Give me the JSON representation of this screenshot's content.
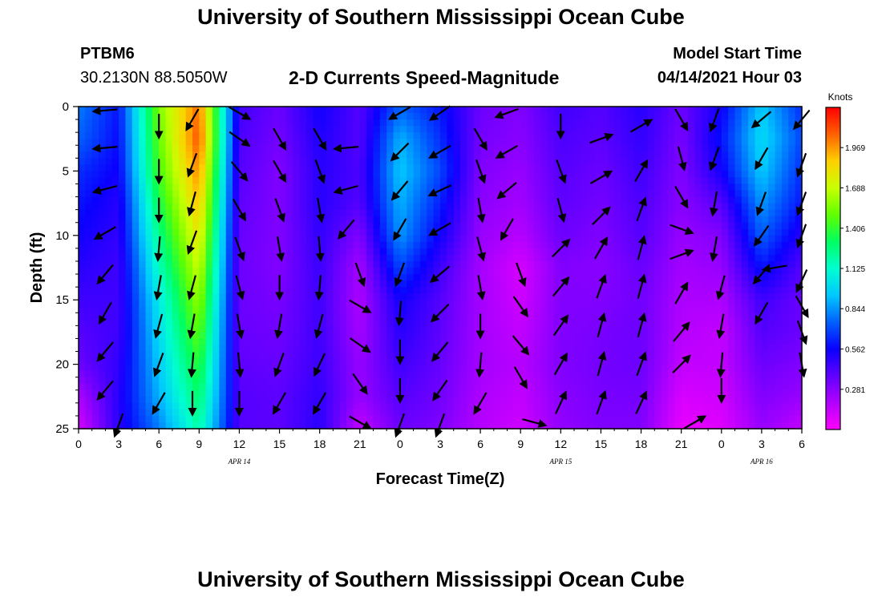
{
  "header": {
    "title": "University of Southern Mississippi Ocean Cube",
    "station_id": "PTBM6",
    "station_coords": "30.2130N  88.5050W",
    "chart_title": "2-D Currents Speed-Magnitude",
    "model_start_label": "Model Start Time",
    "model_start_value": "04/14/2021 Hour 03"
  },
  "footer": {
    "title": "University of Southern Mississippi Ocean Cube"
  },
  "chart_data": {
    "type": "heatmap",
    "title": "2-D Currents Speed-Magnitude",
    "xlabel": "Forecast Time(Z)",
    "ylabel": "Depth (ft)",
    "xlim": [
      0,
      54
    ],
    "ylim": [
      0,
      25
    ],
    "y_inverted": true,
    "x_ticks": [
      0,
      3,
      6,
      9,
      12,
      15,
      18,
      21,
      24,
      27,
      30,
      33,
      36,
      39,
      42,
      45,
      48,
      51,
      54
    ],
    "x_tick_labels": [
      "0",
      "3",
      "6",
      "9",
      "12",
      "15",
      "18",
      "21",
      "0",
      "3",
      "6",
      "9",
      "12",
      "15",
      "18",
      "21",
      "0",
      "3",
      "6"
    ],
    "y_ticks": [
      0,
      5,
      10,
      15,
      20,
      25
    ],
    "y_tick_labels": [
      "0",
      "5",
      "10",
      "15",
      "20",
      "25"
    ],
    "date_labels": [
      {
        "x": 12,
        "text": "APR 14"
      },
      {
        "x": 36,
        "text": "APR 15"
      },
      {
        "x": 51,
        "text": "APR 16"
      }
    ],
    "colorbar": {
      "title": "Knots",
      "min": 0,
      "max": 2.25,
      "ticks": [
        "1.969",
        "1.688",
        "1.406",
        "1.125",
        "0.844",
        "0.562",
        "0.281"
      ],
      "tick_values": [
        1.969,
        1.688,
        1.406,
        1.125,
        0.844,
        0.562,
        0.281
      ],
      "colors": [
        "#ff00ff",
        "#b300ff",
        "#6000ff",
        "#0a00ff",
        "#0060ff",
        "#00c8ff",
        "#00ffd0",
        "#00ff60",
        "#60ff00",
        "#c8ff00",
        "#ffd000",
        "#ff6000",
        "#ff0000"
      ]
    },
    "x": [
      0,
      3,
      6,
      9,
      12,
      15,
      18,
      21,
      24,
      27,
      30,
      33,
      36,
      39,
      42,
      45,
      48,
      51,
      54
    ],
    "depth": [
      0,
      2.5,
      5,
      7.5,
      10,
      12.5,
      15,
      17.5,
      20,
      22.5,
      25
    ],
    "speed": [
      [
        0.8,
        0.6,
        1.55,
        2.05,
        0.45,
        0.35,
        0.55,
        0.4,
        0.75,
        0.6,
        0.35,
        0.3,
        0.45,
        0.4,
        0.5,
        0.35,
        0.55,
        0.95,
        0.65
      ],
      [
        0.75,
        0.58,
        1.5,
        2.1,
        0.42,
        0.33,
        0.52,
        0.4,
        0.9,
        0.65,
        0.33,
        0.28,
        0.42,
        0.38,
        0.48,
        0.32,
        0.6,
        1.0,
        0.7
      ],
      [
        0.65,
        0.55,
        1.45,
        2.0,
        0.4,
        0.3,
        0.5,
        0.42,
        0.95,
        0.7,
        0.3,
        0.25,
        0.4,
        0.35,
        0.45,
        0.3,
        0.55,
        0.95,
        0.65
      ],
      [
        0.6,
        0.5,
        1.35,
        1.9,
        0.38,
        0.3,
        0.5,
        0.4,
        0.9,
        0.62,
        0.28,
        0.22,
        0.38,
        0.33,
        0.42,
        0.28,
        0.4,
        0.85,
        0.6
      ],
      [
        0.55,
        0.48,
        1.25,
        1.8,
        0.36,
        0.3,
        0.48,
        0.3,
        0.85,
        0.55,
        0.25,
        0.18,
        0.35,
        0.3,
        0.4,
        0.25,
        0.3,
        0.75,
        0.5
      ],
      [
        0.5,
        0.45,
        1.15,
        1.7,
        0.35,
        0.3,
        0.46,
        0.22,
        0.7,
        0.45,
        0.22,
        0.1,
        0.3,
        0.28,
        0.36,
        0.22,
        0.25,
        0.6,
        0.4
      ],
      [
        0.45,
        0.45,
        1.05,
        1.6,
        0.35,
        0.32,
        0.45,
        0.2,
        0.55,
        0.4,
        0.22,
        0.12,
        0.3,
        0.3,
        0.34,
        0.2,
        0.2,
        0.45,
        0.35
      ],
      [
        0.4,
        0.45,
        1.0,
        1.5,
        0.36,
        0.34,
        0.45,
        0.22,
        0.5,
        0.38,
        0.22,
        0.15,
        0.3,
        0.32,
        0.35,
        0.18,
        0.15,
        0.4,
        0.35
      ],
      [
        0.35,
        0.48,
        0.95,
        1.4,
        0.38,
        0.36,
        0.46,
        0.25,
        0.45,
        0.36,
        0.22,
        0.18,
        0.3,
        0.33,
        0.35,
        0.15,
        0.15,
        0.35,
        0.3
      ],
      [
        0.2,
        0.5,
        0.9,
        1.3,
        0.4,
        0.38,
        0.48,
        0.25,
        0.4,
        0.34,
        0.2,
        0.15,
        0.28,
        0.32,
        0.33,
        0.1,
        0.12,
        0.3,
        0.25
      ],
      [
        0.1,
        0.5,
        0.8,
        1.2,
        0.4,
        0.38,
        0.5,
        0.15,
        0.35,
        0.3,
        0.18,
        0.12,
        0.26,
        0.3,
        0.3,
        0.05,
        0.08,
        0.25,
        0.15
      ]
    ],
    "vectors": [
      {
        "x": 2,
        "y": 0.3,
        "dir": 265
      },
      {
        "x": 2,
        "y": 3.2,
        "dir": 265
      },
      {
        "x": 2,
        "y": 6.4,
        "dir": 255
      },
      {
        "x": 2,
        "y": 9.8,
        "dir": 240
      },
      {
        "x": 2,
        "y": 13,
        "dir": 220
      },
      {
        "x": 2,
        "y": 16,
        "dir": 210
      },
      {
        "x": 2,
        "y": 19,
        "dir": 220
      },
      {
        "x": 2,
        "y": 22,
        "dir": 220
      },
      {
        "x": 3,
        "y": 24.7,
        "dir": 200
      },
      {
        "x": 6,
        "y": 1.5,
        "dir": 180
      },
      {
        "x": 6,
        "y": 5,
        "dir": 180
      },
      {
        "x": 6,
        "y": 8,
        "dir": 180
      },
      {
        "x": 6,
        "y": 11,
        "dir": 185
      },
      {
        "x": 6,
        "y": 14,
        "dir": 190
      },
      {
        "x": 6,
        "y": 17,
        "dir": 195
      },
      {
        "x": 6,
        "y": 20,
        "dir": 200
      },
      {
        "x": 6,
        "y": 23,
        "dir": 210
      },
      {
        "x": 8.5,
        "y": 1,
        "dir": 210
      },
      {
        "x": 8.5,
        "y": 4.5,
        "dir": 200
      },
      {
        "x": 8.5,
        "y": 7.5,
        "dir": 195
      },
      {
        "x": 8.5,
        "y": 10.5,
        "dir": 200
      },
      {
        "x": 8.5,
        "y": 14,
        "dir": 195
      },
      {
        "x": 8.5,
        "y": 17,
        "dir": 190
      },
      {
        "x": 8.5,
        "y": 20,
        "dir": 185
      },
      {
        "x": 8.5,
        "y": 23,
        "dir": 180
      },
      {
        "x": 12,
        "y": 0.5,
        "dir": 120
      },
      {
        "x": 12,
        "y": 2.5,
        "dir": 125
      },
      {
        "x": 12,
        "y": 5,
        "dir": 140
      },
      {
        "x": 12,
        "y": 8,
        "dir": 150
      },
      {
        "x": 12,
        "y": 11,
        "dir": 160
      },
      {
        "x": 12,
        "y": 14,
        "dir": 165
      },
      {
        "x": 12,
        "y": 17,
        "dir": 170
      },
      {
        "x": 12,
        "y": 20,
        "dir": 175
      },
      {
        "x": 12,
        "y": 23,
        "dir": 180
      },
      {
        "x": 15,
        "y": 2.5,
        "dir": 150
      },
      {
        "x": 15,
        "y": 5,
        "dir": 150
      },
      {
        "x": 15,
        "y": 8,
        "dir": 160
      },
      {
        "x": 15,
        "y": 11,
        "dir": 170
      },
      {
        "x": 15,
        "y": 14,
        "dir": 180
      },
      {
        "x": 15,
        "y": 17,
        "dir": 190
      },
      {
        "x": 15,
        "y": 20,
        "dir": 200
      },
      {
        "x": 15,
        "y": 23,
        "dir": 210
      },
      {
        "x": 18,
        "y": 2.5,
        "dir": 150
      },
      {
        "x": 18,
        "y": 5,
        "dir": 160
      },
      {
        "x": 18,
        "y": 8,
        "dir": 170
      },
      {
        "x": 18,
        "y": 11,
        "dir": 175
      },
      {
        "x": 18,
        "y": 14,
        "dir": 185
      },
      {
        "x": 18,
        "y": 17,
        "dir": 195
      },
      {
        "x": 18,
        "y": 20,
        "dir": 205
      },
      {
        "x": 18,
        "y": 23,
        "dir": 210
      },
      {
        "x": 20,
        "y": 3.2,
        "dir": 265
      },
      {
        "x": 20,
        "y": 6.4,
        "dir": 255
      },
      {
        "x": 20,
        "y": 9.5,
        "dir": 220
      },
      {
        "x": 21,
        "y": 13,
        "dir": 160
      },
      {
        "x": 21,
        "y": 15.5,
        "dir": 120
      },
      {
        "x": 21,
        "y": 18.5,
        "dir": 125
      },
      {
        "x": 21,
        "y": 21.5,
        "dir": 145
      },
      {
        "x": 21,
        "y": 24.5,
        "dir": 120
      },
      {
        "x": 24,
        "y": 0.5,
        "dir": 240
      },
      {
        "x": 24,
        "y": 3.5,
        "dir": 225
      },
      {
        "x": 24,
        "y": 6.5,
        "dir": 220
      },
      {
        "x": 24,
        "y": 9.5,
        "dir": 210
      },
      {
        "x": 24,
        "y": 13,
        "dir": 200
      },
      {
        "x": 24,
        "y": 16,
        "dir": 185
      },
      {
        "x": 24,
        "y": 19,
        "dir": 180
      },
      {
        "x": 24,
        "y": 22,
        "dir": 180
      },
      {
        "x": 24,
        "y": 24.7,
        "dir": 200
      },
      {
        "x": 27,
        "y": 0.5,
        "dir": 235
      },
      {
        "x": 27,
        "y": 3.5,
        "dir": 240
      },
      {
        "x": 27,
        "y": 6.5,
        "dir": 245
      },
      {
        "x": 27,
        "y": 9.5,
        "dir": 240
      },
      {
        "x": 27,
        "y": 13,
        "dir": 230
      },
      {
        "x": 27,
        "y": 16,
        "dir": 225
      },
      {
        "x": 27,
        "y": 19,
        "dir": 220
      },
      {
        "x": 27,
        "y": 22,
        "dir": 215
      },
      {
        "x": 27,
        "y": 24.7,
        "dir": 200
      },
      {
        "x": 30,
        "y": 2.5,
        "dir": 150
      },
      {
        "x": 30,
        "y": 5,
        "dir": 160
      },
      {
        "x": 30,
        "y": 8,
        "dir": 170
      },
      {
        "x": 30,
        "y": 11,
        "dir": 165
      },
      {
        "x": 30,
        "y": 14,
        "dir": 170
      },
      {
        "x": 30,
        "y": 17,
        "dir": 180
      },
      {
        "x": 30,
        "y": 20,
        "dir": 185
      },
      {
        "x": 30,
        "y": 23,
        "dir": 210
      },
      {
        "x": 32,
        "y": 0.5,
        "dir": 250
      },
      {
        "x": 32,
        "y": 3.5,
        "dir": 240
      },
      {
        "x": 32,
        "y": 6.5,
        "dir": 230
      },
      {
        "x": 32,
        "y": 9.5,
        "dir": 210
      },
      {
        "x": 33,
        "y": 13,
        "dir": 160
      },
      {
        "x": 33,
        "y": 15.5,
        "dir": 145
      },
      {
        "x": 33,
        "y": 18.5,
        "dir": 140
      },
      {
        "x": 33,
        "y": 21,
        "dir": 150
      },
      {
        "x": 34,
        "y": 24.5,
        "dir": 105
      },
      {
        "x": 36,
        "y": 1.5,
        "dir": 180
      },
      {
        "x": 36,
        "y": 5,
        "dir": 160
      },
      {
        "x": 36,
        "y": 8,
        "dir": 165
      },
      {
        "x": 36,
        "y": 11,
        "dir": 45
      },
      {
        "x": 36,
        "y": 14,
        "dir": 40
      },
      {
        "x": 36,
        "y": 17,
        "dir": 35
      },
      {
        "x": 36,
        "y": 20,
        "dir": 30
      },
      {
        "x": 36,
        "y": 23,
        "dir": 25
      },
      {
        "x": 39,
        "y": 2.5,
        "dir": 70
      },
      {
        "x": 39,
        "y": 5.5,
        "dir": 60
      },
      {
        "x": 39,
        "y": 8.5,
        "dir": 45
      },
      {
        "x": 39,
        "y": 11,
        "dir": 30
      },
      {
        "x": 39,
        "y": 14,
        "dir": 20
      },
      {
        "x": 39,
        "y": 17,
        "dir": 15
      },
      {
        "x": 39,
        "y": 20,
        "dir": 15
      },
      {
        "x": 39,
        "y": 23,
        "dir": 20
      },
      {
        "x": 42,
        "y": 1.5,
        "dir": 60
      },
      {
        "x": 42,
        "y": 5,
        "dir": 30
      },
      {
        "x": 42,
        "y": 8,
        "dir": 20
      },
      {
        "x": 42,
        "y": 11,
        "dir": 15
      },
      {
        "x": 42,
        "y": 14,
        "dir": 15
      },
      {
        "x": 42,
        "y": 17,
        "dir": 15
      },
      {
        "x": 42,
        "y": 20,
        "dir": 20
      },
      {
        "x": 42,
        "y": 23,
        "dir": 25
      },
      {
        "x": 45,
        "y": 1,
        "dir": 150
      },
      {
        "x": 45,
        "y": 4,
        "dir": 165
      },
      {
        "x": 45,
        "y": 7,
        "dir": 150
      },
      {
        "x": 45,
        "y": 9.5,
        "dir": 110
      },
      {
        "x": 45,
        "y": 11.5,
        "dir": 70
      },
      {
        "x": 45,
        "y": 14.5,
        "dir": 30
      },
      {
        "x": 45,
        "y": 17.5,
        "dir": 40
      },
      {
        "x": 45,
        "y": 20,
        "dir": 45
      },
      {
        "x": 46,
        "y": 24.5,
        "dir": 60
      },
      {
        "x": 47.5,
        "y": 1,
        "dir": 200
      },
      {
        "x": 47.5,
        "y": 4,
        "dir": 200
      },
      {
        "x": 47.5,
        "y": 7.5,
        "dir": 190
      },
      {
        "x": 47.5,
        "y": 11,
        "dir": 190
      },
      {
        "x": 48,
        "y": 14,
        "dir": 195
      },
      {
        "x": 48,
        "y": 17,
        "dir": 190
      },
      {
        "x": 48,
        "y": 20,
        "dir": 185
      },
      {
        "x": 48,
        "y": 22,
        "dir": 180
      },
      {
        "x": 51,
        "y": 1,
        "dir": 230
      },
      {
        "x": 51,
        "y": 4,
        "dir": 210
      },
      {
        "x": 51,
        "y": 7.5,
        "dir": 200
      },
      {
        "x": 51,
        "y": 10,
        "dir": 215
      },
      {
        "x": 51,
        "y": 13,
        "dir": 220
      },
      {
        "x": 51,
        "y": 16,
        "dir": 210
      },
      {
        "x": 52,
        "y": 12.5,
        "dir": 260
      },
      {
        "x": 54,
        "y": 1,
        "dir": 220
      },
      {
        "x": 54,
        "y": 4.5,
        "dir": 200
      },
      {
        "x": 54,
        "y": 7.5,
        "dir": 200
      },
      {
        "x": 54,
        "y": 10,
        "dir": 200
      },
      {
        "x": 54,
        "y": 13.5,
        "dir": 205
      },
      {
        "x": 54,
        "y": 15.5,
        "dir": 150
      },
      {
        "x": 54,
        "y": 17.5,
        "dir": 160
      },
      {
        "x": 54,
        "y": 20,
        "dir": 170
      }
    ]
  }
}
